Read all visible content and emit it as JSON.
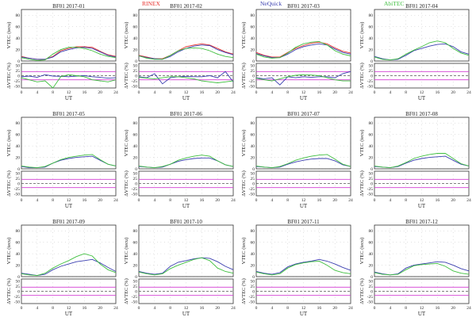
{
  "legend": {
    "rinex": "RINEX",
    "nequick": "NeQuick",
    "abitec": "AbiTEC"
  },
  "colors": {
    "rinex": "#e8322f",
    "nequick": "#3b3fb0",
    "abitec": "#3fbf3f",
    "magenta": "#d23bd2",
    "dash": "#555555"
  },
  "axes": {
    "top_ylabel": "VTEC (tecu)",
    "bottom_ylabel": "ΔVTEC (%)",
    "xlabel": "UT",
    "xticks": [
      0,
      4,
      8,
      12,
      16,
      20,
      24
    ],
    "top_yticks": [
      0,
      20,
      40,
      60,
      80
    ],
    "bottom_yticks": [
      -50,
      -25,
      0,
      25,
      50
    ]
  },
  "chart_data": [
    {
      "type": "line",
      "title": "BF01 2017-01",
      "xlim": [
        0,
        24
      ],
      "top_ylim": [
        0,
        90
      ],
      "bottom_ylim": [
        -60,
        60
      ],
      "x": [
        0,
        2,
        4,
        6,
        8,
        10,
        12,
        14,
        16,
        18,
        20,
        22,
        24
      ],
      "series": [
        {
          "key": "rinex",
          "values": [
            8,
            5,
            3,
            3,
            8,
            18,
            22,
            25,
            25,
            24,
            17,
            11,
            8
          ]
        },
        {
          "key": "nequick",
          "values": [
            7,
            5,
            3,
            3,
            7,
            16,
            20,
            23,
            24,
            22,
            16,
            10,
            7
          ]
        },
        {
          "key": "abitec",
          "values": [
            6,
            3,
            1,
            2,
            12,
            20,
            24,
            24,
            22,
            18,
            12,
            8,
            6
          ]
        }
      ],
      "delta": [
        {
          "key": "nequick",
          "values": [
            -5,
            -2,
            -8,
            5,
            -2,
            -3,
            -5,
            -2,
            0,
            -5,
            -8,
            -12,
            -10
          ]
        },
        {
          "key": "abitec",
          "values": [
            -10,
            -20,
            -30,
            -25,
            -60,
            -5,
            5,
            0,
            -5,
            -20,
            -25,
            -30,
            -20
          ]
        }
      ]
    },
    {
      "type": "line",
      "title": "BF01 2017-02",
      "xlim": [
        0,
        24
      ],
      "top_ylim": [
        0,
        90
      ],
      "bottom_ylim": [
        -60,
        60
      ],
      "x": [
        0,
        2,
        4,
        6,
        8,
        10,
        12,
        14,
        16,
        18,
        20,
        22,
        24
      ],
      "series": [
        {
          "key": "rinex",
          "values": [
            10,
            7,
            4,
            4,
            10,
            18,
            25,
            28,
            30,
            28,
            22,
            16,
            12
          ]
        },
        {
          "key": "nequick",
          "values": [
            9,
            6,
            4,
            3,
            8,
            16,
            22,
            26,
            28,
            27,
            20,
            15,
            11
          ]
        },
        {
          "key": "abitec",
          "values": [
            9,
            5,
            3,
            3,
            10,
            18,
            22,
            23,
            22,
            18,
            12,
            8,
            6
          ]
        }
      ],
      "delta": [
        {
          "key": "nequick",
          "values": [
            -5,
            -10,
            10,
            -40,
            -10,
            -5,
            -3,
            -5,
            -5,
            0,
            -10,
            20,
            -30
          ]
        },
        {
          "key": "abitec",
          "values": [
            -8,
            -12,
            -15,
            -10,
            -5,
            -5,
            -10,
            -15,
            -25,
            -30,
            -35,
            -30,
            -25
          ]
        }
      ]
    },
    {
      "type": "line",
      "title": "BF01 2017-03",
      "xlim": [
        0,
        24
      ],
      "top_ylim": [
        0,
        90
      ],
      "bottom_ylim": [
        -60,
        60
      ],
      "x": [
        0,
        2,
        4,
        6,
        8,
        10,
        12,
        14,
        16,
        18,
        20,
        22,
        24
      ],
      "series": [
        {
          "key": "rinex",
          "values": [
            15,
            10,
            7,
            7,
            15,
            22,
            27,
            31,
            33,
            30,
            23,
            17,
            14
          ]
        },
        {
          "key": "nequick",
          "values": [
            13,
            9,
            6,
            6,
            12,
            20,
            25,
            28,
            30,
            28,
            21,
            15,
            12
          ]
        },
        {
          "key": "abitec",
          "values": [
            12,
            7,
            5,
            6,
            14,
            24,
            30,
            33,
            34,
            28,
            18,
            12,
            9
          ]
        }
      ],
      "delta": [
        {
          "key": "nequick",
          "values": [
            -10,
            -15,
            -10,
            -45,
            -5,
            -10,
            -5,
            -8,
            -5,
            -5,
            -10,
            10,
            20
          ]
        },
        {
          "key": "abitec",
          "values": [
            -12,
            -20,
            -25,
            -15,
            -5,
            2,
            5,
            3,
            0,
            -10,
            -20,
            -25,
            -25
          ]
        }
      ]
    },
    {
      "type": "line",
      "title": "BF01 2017-04",
      "xlim": [
        0,
        24
      ],
      "top_ylim": [
        0,
        90
      ],
      "bottom_ylim": [
        -60,
        60
      ],
      "x": [
        0,
        2,
        4,
        6,
        8,
        10,
        12,
        14,
        16,
        18,
        20,
        22,
        24
      ],
      "series": [
        {
          "key": "nequick",
          "values": [
            8,
            4,
            2,
            3,
            10,
            18,
            22,
            26,
            29,
            30,
            25,
            16,
            12
          ]
        },
        {
          "key": "abitec",
          "values": [
            7,
            3,
            2,
            4,
            12,
            19,
            25,
            32,
            35,
            32,
            22,
            14,
            10
          ]
        }
      ],
      "delta": []
    },
    {
      "type": "line",
      "title": "BF01 2017-05",
      "xlim": [
        0,
        24
      ],
      "top_ylim": [
        0,
        90
      ],
      "bottom_ylim": [
        -60,
        60
      ],
      "x": [
        0,
        2,
        4,
        6,
        8,
        10,
        12,
        14,
        16,
        18,
        20,
        22,
        24
      ],
      "series": [
        {
          "key": "nequick",
          "values": [
            4,
            2,
            2,
            3,
            10,
            15,
            18,
            20,
            21,
            22,
            15,
            8,
            5
          ]
        },
        {
          "key": "abitec",
          "values": [
            5,
            3,
            2,
            4,
            10,
            16,
            20,
            22,
            24,
            25,
            16,
            8,
            5
          ]
        }
      ],
      "delta": []
    },
    {
      "type": "line",
      "title": "BF01 2017-06",
      "xlim": [
        0,
        24
      ],
      "top_ylim": [
        0,
        90
      ],
      "bottom_ylim": [
        -60,
        60
      ],
      "x": [
        0,
        2,
        4,
        6,
        8,
        10,
        12,
        14,
        16,
        18,
        20,
        22,
        24
      ],
      "series": [
        {
          "key": "nequick",
          "values": [
            4,
            3,
            2,
            3,
            8,
            13,
            16,
            18,
            19,
            19,
            14,
            7,
            4
          ]
        },
        {
          "key": "abitec",
          "values": [
            5,
            3,
            2,
            4,
            8,
            15,
            19,
            22,
            24,
            22,
            14,
            7,
            4
          ]
        }
      ],
      "delta": []
    },
    {
      "type": "line",
      "title": "BF01 2017-07",
      "xlim": [
        0,
        24
      ],
      "top_ylim": [
        0,
        90
      ],
      "bottom_ylim": [
        -60,
        60
      ],
      "x": [
        0,
        2,
        4,
        6,
        8,
        10,
        12,
        14,
        16,
        18,
        20,
        22,
        24
      ],
      "series": [
        {
          "key": "nequick",
          "values": [
            4,
            3,
            2,
            3,
            8,
            12,
            15,
            17,
            18,
            18,
            14,
            7,
            4
          ]
        },
        {
          "key": "abitec",
          "values": [
            5,
            3,
            2,
            4,
            9,
            15,
            19,
            22,
            24,
            25,
            17,
            8,
            4
          ]
        }
      ],
      "delta": []
    },
    {
      "type": "line",
      "title": "BF01 2017-08",
      "xlim": [
        0,
        24
      ],
      "top_ylim": [
        0,
        90
      ],
      "bottom_ylim": [
        -60,
        60
      ],
      "x": [
        0,
        2,
        4,
        6,
        8,
        10,
        12,
        14,
        16,
        18,
        20,
        22,
        24
      ],
      "series": [
        {
          "key": "nequick",
          "values": [
            4,
            3,
            2,
            4,
            10,
            15,
            18,
            20,
            21,
            22,
            15,
            8,
            5
          ]
        },
        {
          "key": "abitec",
          "values": [
            5,
            3,
            2,
            5,
            11,
            18,
            22,
            25,
            27,
            27,
            18,
            9,
            5
          ]
        }
      ],
      "delta": []
    },
    {
      "type": "line",
      "title": "BF01 2017-09",
      "xlim": [
        0,
        24
      ],
      "top_ylim": [
        0,
        90
      ],
      "bottom_ylim": [
        -60,
        60
      ],
      "x": [
        0,
        2,
        4,
        6,
        8,
        10,
        12,
        14,
        16,
        18,
        20,
        22,
        24
      ],
      "series": [
        {
          "key": "nequick",
          "values": [
            6,
            4,
            2,
            4,
            12,
            18,
            22,
            26,
            28,
            30,
            24,
            16,
            9
          ]
        },
        {
          "key": "abitec",
          "values": [
            5,
            3,
            2,
            6,
            15,
            22,
            28,
            35,
            40,
            36,
            22,
            12,
            7
          ]
        }
      ],
      "delta": []
    },
    {
      "type": "line",
      "title": "BF01 2017-10",
      "xlim": [
        0,
        24
      ],
      "top_ylim": [
        0,
        90
      ],
      "bottom_ylim": [
        -60,
        60
      ],
      "x": [
        0,
        2,
        4,
        6,
        8,
        10,
        12,
        14,
        16,
        18,
        20,
        22,
        24
      ],
      "series": [
        {
          "key": "nequick",
          "values": [
            9,
            6,
            4,
            6,
            18,
            25,
            28,
            31,
            33,
            32,
            26,
            18,
            12
          ]
        },
        {
          "key": "abitec",
          "values": [
            8,
            5,
            3,
            5,
            14,
            20,
            25,
            30,
            33,
            28,
            15,
            9,
            6
          ]
        }
      ],
      "delta": []
    },
    {
      "type": "line",
      "title": "BF01 2017-11",
      "xlim": [
        0,
        24
      ],
      "top_ylim": [
        0,
        90
      ],
      "bottom_ylim": [
        -60,
        60
      ],
      "x": [
        0,
        2,
        4,
        6,
        8,
        10,
        12,
        14,
        16,
        18,
        20,
        22,
        24
      ],
      "series": [
        {
          "key": "nequick",
          "values": [
            9,
            6,
            4,
            7,
            17,
            22,
            25,
            27,
            30,
            27,
            22,
            16,
            11
          ]
        },
        {
          "key": "abitec",
          "values": [
            8,
            5,
            3,
            5,
            15,
            21,
            24,
            26,
            27,
            20,
            11,
            7,
            5
          ]
        }
      ],
      "delta": []
    },
    {
      "type": "line",
      "title": "BF01 2017-12",
      "xlim": [
        0,
        24
      ],
      "top_ylim": [
        0,
        90
      ],
      "bottom_ylim": [
        -60,
        60
      ],
      "x": [
        0,
        2,
        4,
        6,
        8,
        10,
        12,
        14,
        16,
        18,
        20,
        22,
        24
      ],
      "series": [
        {
          "key": "nequick",
          "values": [
            8,
            5,
            3,
            5,
            15,
            20,
            22,
            24,
            26,
            25,
            20,
            14,
            10
          ]
        },
        {
          "key": "abitec",
          "values": [
            7,
            4,
            3,
            4,
            12,
            19,
            21,
            22,
            23,
            18,
            10,
            6,
            4
          ]
        }
      ],
      "delta": []
    }
  ]
}
